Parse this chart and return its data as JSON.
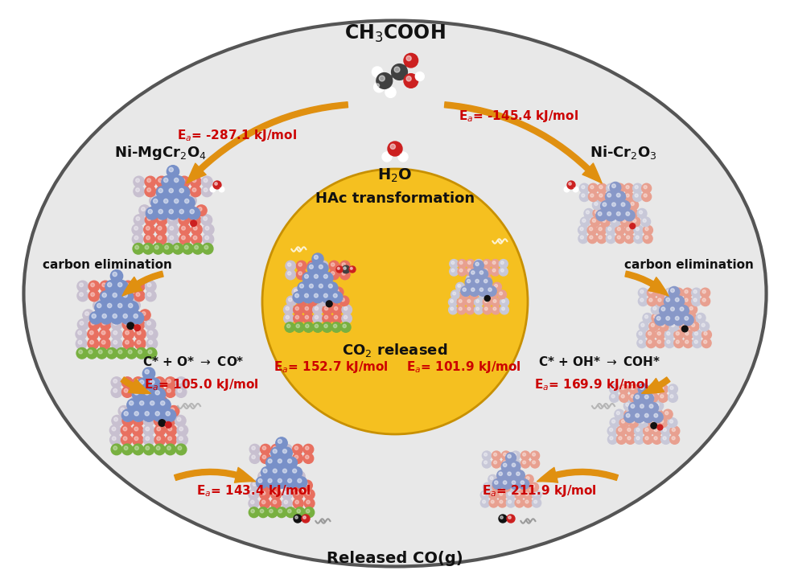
{
  "bg_color": "#e0e0e0",
  "outer_ellipse_fc": "#e8e8e8",
  "outer_ellipse_ec": "#444444",
  "inner_circle_fc": "#f5c020",
  "inner_circle_ec": "#c89000",
  "text_color_black": "#111111",
  "text_color_red": "#cc0000",
  "arrow_color": "#e09010",
  "top_formula": "CH$_3$COOH",
  "water_formula": "H$_2$O",
  "hac_label": "HAc transformation",
  "co2_label": "CO$_2$ released",
  "co_label": "Released CO(g)",
  "left_catalyst": "Ni-MgCr$_2$O$_4$",
  "right_catalyst": "Ni-Cr$_2$O$_3$",
  "left_carbon_label": "carbon elimination",
  "right_carbon_label": "carbon elimination",
  "left_co_reaction": "C* + O* $\\rightarrow$ CO*",
  "right_co_reaction": "C* + OH* $\\rightarrow$ COH*",
  "ea_top_left": "E$_a$= -287.1 kJ/mol",
  "ea_top_right": "E$_a$= -145.4 kJ/mol",
  "ea_left_co": "E$_a$= 105.0 kJ/mol",
  "ea_right_co": "E$_a$= 169.9 kJ/mol",
  "ea_inner_left": "E$_a$= 152.7 kJ/mol",
  "ea_inner_right": "E$_a$= 101.9 kJ/mol",
  "ea_bottom_left": "E$_a$= 143.4 kJ/mol",
  "ea_bottom_right": "E$_a$= 211.9 kJ/mol"
}
